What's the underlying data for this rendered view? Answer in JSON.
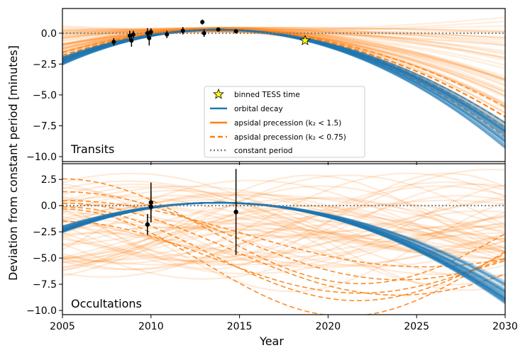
{
  "chart_data": [
    {
      "type": "line",
      "panel": "top",
      "title": "",
      "panel_label": "Transits",
      "xlabel": "Year",
      "ylabel": "Deviation from constant period [minutes]",
      "xlim": [
        2005,
        2030
      ],
      "ylim": [
        -10.4,
        2.0
      ],
      "xticks": [
        2005,
        2010,
        2015,
        2020,
        2025,
        2030
      ],
      "yticks": [
        0.0,
        -2.5,
        -5.0,
        -7.5,
        -10.0
      ],
      "ytick_labels": [
        "0.0",
        "−2.5",
        "−5.0",
        "−7.5",
        "−10.0"
      ],
      "legend": {
        "position": "center-bottom",
        "entries": [
          {
            "label": "binned TESS time",
            "style": "star",
            "color": "#ffff00"
          },
          {
            "label": "orbital decay",
            "style": "solid",
            "color": "#1f77b4"
          },
          {
            "label": "apsidal precession (k₂ < 1.5)",
            "style": "solid",
            "color": "#ff7f0e"
          },
          {
            "label": "apsidal precession (k₂ < 0.75)",
            "style": "dashed",
            "color": "#ff7f0e"
          },
          {
            "label": "constant period",
            "style": "dotted",
            "color": "#808080"
          }
        ]
      },
      "series": [
        {
          "name": "constant period",
          "x": [
            2005,
            2030
          ],
          "y": [
            0,
            0
          ]
        },
        {
          "name": "orbital decay",
          "peak_year": 2013.8,
          "peak_value": 0.28,
          "end_range_2030": [
            -7.2,
            -9.4
          ]
        },
        {
          "name": "apsidal precession (k2 < 1.5)",
          "end_range_2030": [
            -9.5,
            1.6
          ]
        },
        {
          "name": "apsidal precession (k2 < 0.75)",
          "end_range_2030": [
            -9.6,
            -5.8
          ]
        }
      ],
      "points": [
        {
          "x": 2007.9,
          "y": -0.7,
          "err": 0.3
        },
        {
          "x": 2008.8,
          "y": -0.2,
          "err": 0.4
        },
        {
          "x": 2008.9,
          "y": -0.6,
          "err": 0.5
        },
        {
          "x": 2009.0,
          "y": -0.1,
          "err": 0.3
        },
        {
          "x": 2009.8,
          "y": 0.0,
          "err": 0.4
        },
        {
          "x": 2009.9,
          "y": -0.4,
          "err": 0.6
        },
        {
          "x": 2010.0,
          "y": 0.1,
          "err": 0.3
        },
        {
          "x": 2010.9,
          "y": -0.1,
          "err": 0.3
        },
        {
          "x": 2011.8,
          "y": 0.2,
          "err": 0.3
        },
        {
          "x": 2012.9,
          "y": 0.9,
          "err": 0.2
        },
        {
          "x": 2013.0,
          "y": 0.0,
          "err": 0.3
        },
        {
          "x": 2013.8,
          "y": 0.3,
          "err": 0.1
        },
        {
          "x": 2014.8,
          "y": 0.15,
          "err": 0.1
        }
      ],
      "tess_point": {
        "label": "binned TESS time",
        "x": 2018.7,
        "y": -0.6
      }
    },
    {
      "type": "line",
      "panel": "bottom",
      "panel_label": "Occultations",
      "xlabel": "Year",
      "xlim": [
        2005,
        2030
      ],
      "ylim": [
        -10.4,
        4.0
      ],
      "xticks": [
        2005,
        2010,
        2015,
        2020,
        2025,
        2030
      ],
      "xtick_labels": [
        "2005",
        "2010",
        "2015",
        "2020",
        "2025",
        "2030"
      ],
      "yticks": [
        2.5,
        0.0,
        -2.5,
        -5.0,
        -7.5,
        -10.0
      ],
      "ytick_labels": [
        "2.5",
        "0.0",
        "−2.5",
        "−5.0",
        "−7.5",
        "−10.0"
      ],
      "points": [
        {
          "x": 2009.8,
          "y": -1.8,
          "err": 1.0
        },
        {
          "x": 2010.0,
          "y": 0.3,
          "err": 1.9
        },
        {
          "x": 2010.0,
          "y": -0.1,
          "err": 1.4
        },
        {
          "x": 2014.8,
          "y": -0.6,
          "err": 4.1
        }
      ]
    }
  ]
}
